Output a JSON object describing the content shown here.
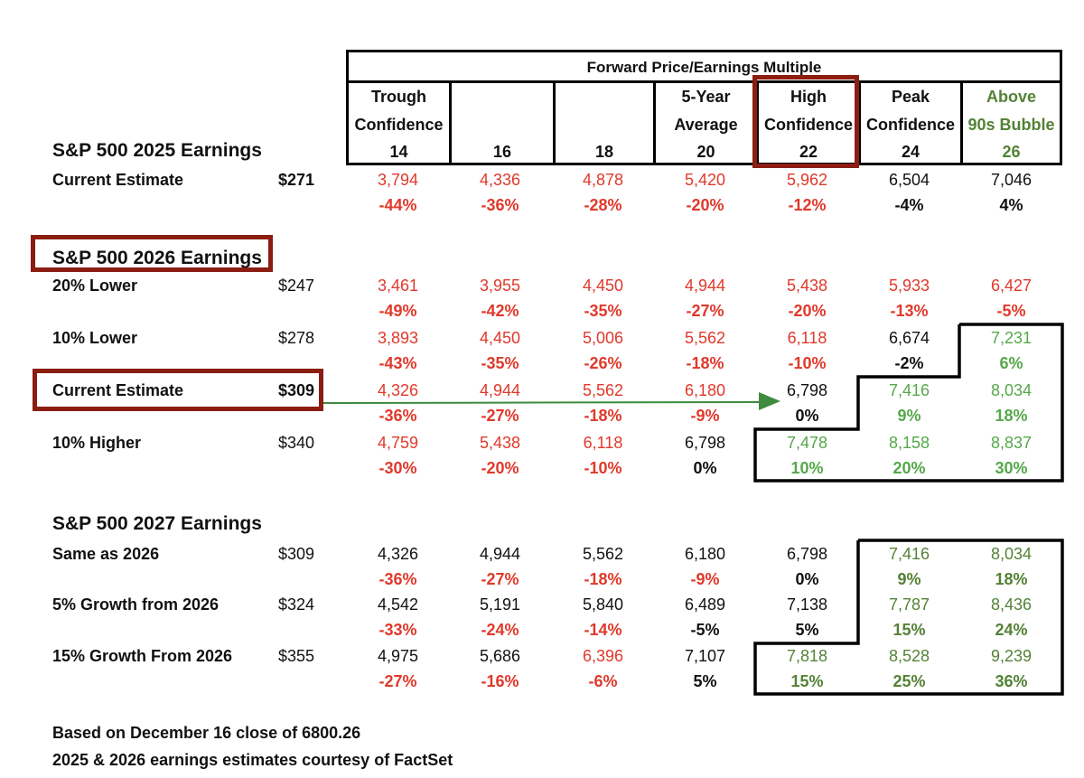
{
  "table_header": {
    "title": "Forward Price/Earnings Multiple",
    "columns": [
      {
        "line1": "Trough",
        "line2": "Confidence",
        "multiple": "14",
        "color": "#111111"
      },
      {
        "line1": "",
        "line2": "",
        "multiple": "16",
        "color": "#111111"
      },
      {
        "line1": "",
        "line2": "",
        "multiple": "18",
        "color": "#111111"
      },
      {
        "line1": "5-Year",
        "line2": "Average",
        "multiple": "20",
        "color": "#111111"
      },
      {
        "line1": "High",
        "line2": "Confidence",
        "multiple": "22",
        "color": "#111111"
      },
      {
        "line1": "Peak",
        "line2": "Confidence",
        "multiple": "24",
        "color": "#111111"
      },
      {
        "line1": "Above",
        "line2": "90s Bubble",
        "multiple": "26",
        "color": "#548235"
      }
    ]
  },
  "sections": [
    {
      "title": "S&P 500 2025 Earnings",
      "rows": [
        {
          "label": "Current Estimate",
          "eps": "$271",
          "values": [
            "3,794",
            "4,336",
            "4,878",
            "5,420",
            "5,962",
            "6,504",
            "7,046"
          ],
          "pcts": [
            "-44%",
            "-36%",
            "-28%",
            "-20%",
            "-12%",
            "-4%",
            "4%"
          ],
          "colors": [
            "red",
            "red",
            "red",
            "red",
            "red",
            "blk",
            "blk"
          ]
        }
      ]
    },
    {
      "title": "S&P 500 2026 Earnings",
      "rows": [
        {
          "label": "20% Lower",
          "eps": "$247",
          "values": [
            "3,461",
            "3,955",
            "4,450",
            "4,944",
            "5,438",
            "5,933",
            "6,427"
          ],
          "pcts": [
            "-49%",
            "-42%",
            "-35%",
            "-27%",
            "-20%",
            "-13%",
            "-5%"
          ],
          "colors": [
            "red",
            "red",
            "red",
            "red",
            "red",
            "red",
            "red"
          ]
        },
        {
          "label": "10% Lower",
          "eps": "$278",
          "values": [
            "3,893",
            "4,450",
            "5,006",
            "5,562",
            "6,118",
            "6,674",
            "7,231"
          ],
          "pcts": [
            "-43%",
            "-35%",
            "-26%",
            "-18%",
            "-10%",
            "-2%",
            "6%"
          ],
          "colors": [
            "red",
            "red",
            "red",
            "red",
            "red",
            "blk",
            "grn"
          ]
        },
        {
          "label": "Current Estimate",
          "eps": "$309",
          "values": [
            "4,326",
            "4,944",
            "5,562",
            "6,180",
            "6,798",
            "7,416",
            "8,034"
          ],
          "pcts": [
            "-36%",
            "-27%",
            "-18%",
            "-9%",
            "0%",
            "9%",
            "18%"
          ],
          "colors": [
            "red",
            "red",
            "red",
            "red",
            "blk",
            "grn",
            "grn"
          ]
        },
        {
          "label": "10% Higher",
          "eps": "$340",
          "values": [
            "4,759",
            "5,438",
            "6,118",
            "6,798",
            "7,478",
            "8,158",
            "8,837"
          ],
          "pcts": [
            "-30%",
            "-20%",
            "-10%",
            "0%",
            "10%",
            "20%",
            "30%"
          ],
          "colors": [
            "red",
            "red",
            "red",
            "blk",
            "grn",
            "grn",
            "grn"
          ]
        }
      ]
    },
    {
      "title": "S&P 500 2027 Earnings",
      "rows": [
        {
          "label": "Same as 2026",
          "eps": "$309",
          "values": [
            "4,326",
            "4,944",
            "5,562",
            "6,180",
            "6,798",
            "7,416",
            "8,034"
          ],
          "pcts": [
            "-36%",
            "-27%",
            "-18%",
            "-9%",
            "0%",
            "9%",
            "18%"
          ],
          "colors": [
            "blk",
            "blk",
            "blk",
            "blk",
            "blk",
            "olv",
            "olv"
          ],
          "pct_colors": [
            "red",
            "red",
            "red",
            "red",
            "blk",
            "olv",
            "olv"
          ]
        },
        {
          "label": "5% Growth from 2026",
          "eps": "$324",
          "values": [
            "4,542",
            "5,191",
            "5,840",
            "6,489",
            "7,138",
            "7,787",
            "8,436"
          ],
          "pcts": [
            "-33%",
            "-24%",
            "-14%",
            "-5%",
            "5%",
            "15%",
            "24%"
          ],
          "colors": [
            "blk",
            "blk",
            "blk",
            "blk",
            "blk",
            "olv",
            "olv"
          ],
          "pct_colors": [
            "red",
            "red",
            "red",
            "blk",
            "blk",
            "olv",
            "olv"
          ]
        },
        {
          "label": "15% Growth From 2026",
          "eps": "$355",
          "values": [
            "4,975",
            "5,686",
            "6,396",
            "7,107",
            "7,818",
            "8,528",
            "9,239"
          ],
          "pcts": [
            "-27%",
            "-16%",
            "-6%",
            "5%",
            "15%",
            "25%",
            "36%"
          ],
          "colors": [
            "blk",
            "blk",
            "red",
            "blk",
            "olv",
            "olv",
            "olv"
          ],
          "pct_colors": [
            "red",
            "red",
            "red",
            "blk",
            "olv",
            "olv",
            "olv"
          ]
        }
      ]
    }
  ],
  "footnotes": [
    "Based on December 16 close of 6800.26",
    "2025 & 2026 earnings estimates courtesy of FactSet"
  ],
  "colors": {
    "red": "#e0392b",
    "green": "#55a84a",
    "olive": "#548235",
    "highlight_box": "#8b1d12",
    "arrow": "#3f8a3f"
  }
}
